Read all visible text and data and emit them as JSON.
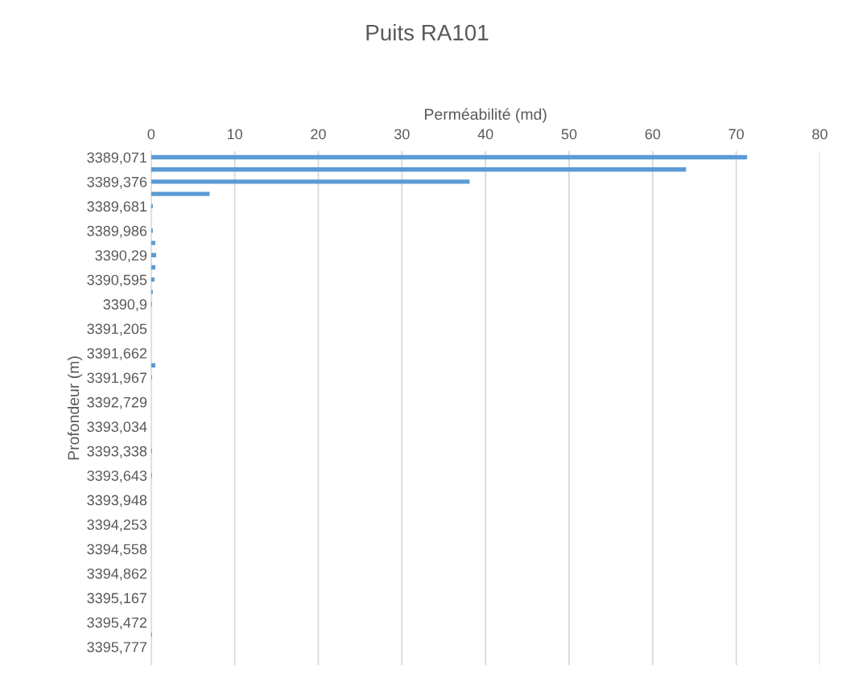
{
  "chart_data": {
    "type": "bar",
    "orientation": "horizontal",
    "title": "Puits RA101",
    "xlabel": "Perméabilité (md)",
    "ylabel": "Profondeur (m)",
    "categories": [
      "3389,071",
      null,
      "3389,376",
      null,
      "3389,681",
      null,
      "3389,986",
      null,
      "3390,29",
      null,
      "3390,595",
      null,
      "3390,9",
      null,
      "3391,205",
      null,
      "3391,662",
      null,
      "3391,967",
      null,
      "3392,729",
      null,
      "3393,034",
      null,
      "3393,338",
      null,
      "3393,643",
      null,
      "3393,948",
      null,
      "3394,253",
      null,
      "3394,558",
      null,
      "3394,862",
      null,
      "3395,167",
      null,
      "3395,472",
      null,
      "3395,777",
      null
    ],
    "values": [
      71.3,
      64,
      38.1,
      7,
      0.2,
      0,
      0.2,
      0.5,
      0.6,
      0.5,
      0.4,
      0.2,
      0.1,
      0,
      0,
      0,
      0,
      0.5,
      0.1,
      0,
      0,
      0,
      0,
      0,
      0.1,
      0,
      0.1,
      0,
      0,
      0,
      0,
      0,
      0,
      0,
      0,
      0,
      0,
      0,
      0,
      0.1,
      0,
      0
    ],
    "color": "#5b9bd5",
    "xlim": [
      0,
      80
    ],
    "xticks": [
      0,
      10,
      20,
      30,
      40,
      50,
      60,
      70,
      80
    ],
    "grid": "x",
    "legend": false
  }
}
